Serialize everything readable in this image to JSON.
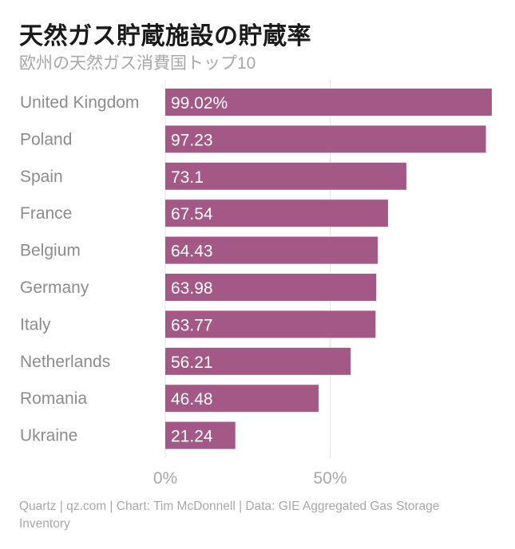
{
  "header": {
    "title": "天然ガス貯蔵施設の貯蔵率",
    "subtitle": "欧州の天然ガス消費国トップ10"
  },
  "footer": {
    "credit": "Quartz | qz.com | Chart: Tim McDonnell | Data: GIE Aggregated Gas Storage Inventory"
  },
  "colors": {
    "bar": "#a45885",
    "grid": "#e6e6e6",
    "category_label": "#8c8c8c",
    "tick_label": "#a8a8a8",
    "value_label": "#ffffff"
  },
  "chart_data": {
    "type": "bar",
    "orientation": "horizontal",
    "title": "天然ガス貯蔵施設の貯蔵率",
    "subtitle": "欧州の天然ガス消費国トップ10",
    "categories": [
      "United Kingdom",
      "Poland",
      "Spain",
      "France",
      "Belgium",
      "Germany",
      "Italy",
      "Netherlands",
      "Romania",
      "Ukraine"
    ],
    "values": [
      99.02,
      97.23,
      73.1,
      67.54,
      64.43,
      63.98,
      63.77,
      56.21,
      46.48,
      21.24
    ],
    "value_labels": [
      "99.02%",
      "97.23",
      "73.1",
      "67.54",
      "64.43",
      "63.98",
      "63.77",
      "56.21",
      "46.48",
      "21.24"
    ],
    "xlim": [
      0,
      100
    ],
    "xticks": [
      0,
      50
    ],
    "xtick_labels": [
      "0%",
      "50%"
    ],
    "grid": true,
    "xlabel": "",
    "ylabel": ""
  }
}
